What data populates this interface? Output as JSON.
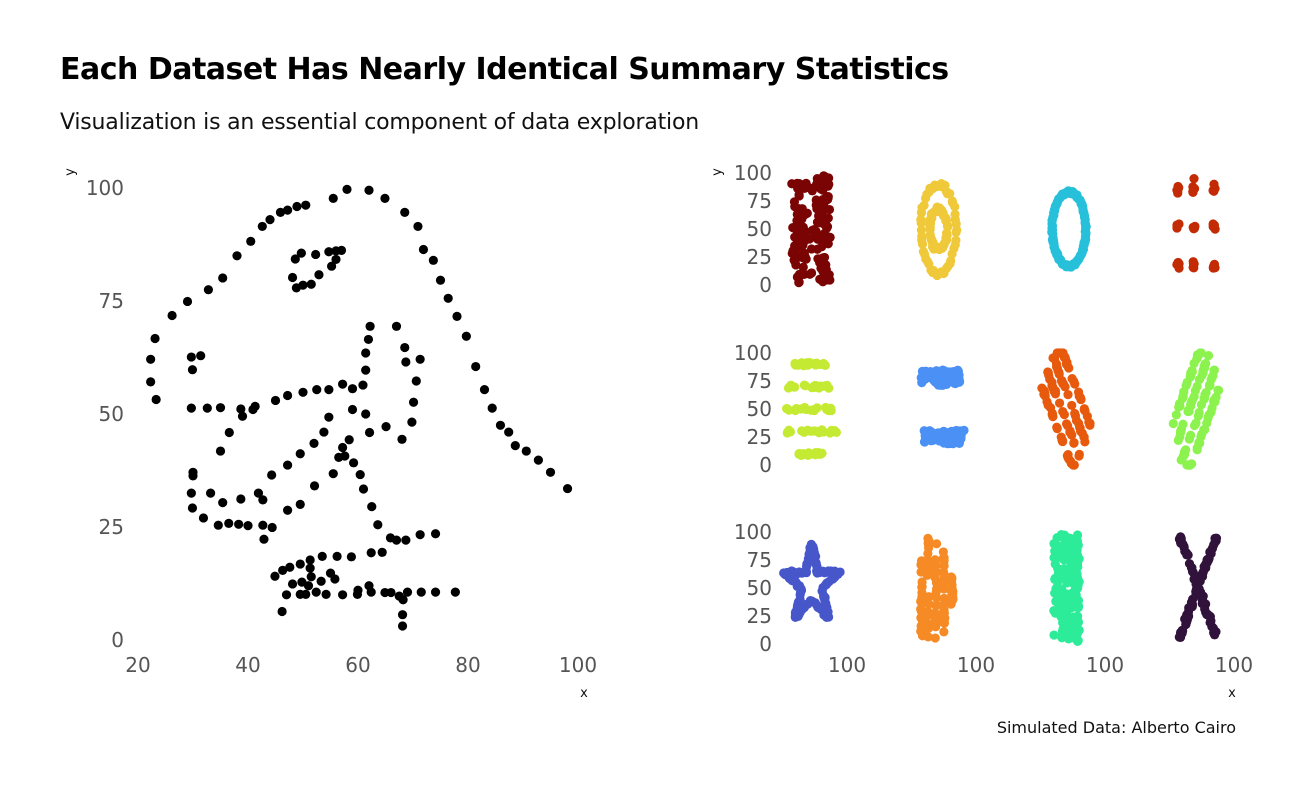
{
  "title": "Each Dataset Has Nearly Identical Summary Statistics",
  "subtitle": "Visualization is an essential component of data exploration",
  "caption": "Simulated Data: Alberto Cairo",
  "chart_data": [
    {
      "type": "scatter",
      "name": "dino",
      "xlabel": "x",
      "ylabel": "y",
      "xlim": [
        20,
        100
      ],
      "ylim": [
        0,
        100
      ],
      "xticks": [
        "20",
        "40",
        "60",
        "80",
        "100"
      ],
      "yticks": [
        "0",
        "25",
        "50",
        "75",
        "100"
      ],
      "color": "#000000",
      "points": [
        [
          22.3,
          57.1
        ],
        [
          22.3,
          62.1
        ],
        [
          23.1,
          66.7
        ],
        [
          23.3,
          53.2
        ],
        [
          26.2,
          71.8
        ],
        [
          29,
          74.9
        ],
        [
          32.8,
          77.5
        ],
        [
          35.4,
          80.1
        ],
        [
          38,
          85
        ],
        [
          40.5,
          88.2
        ],
        [
          42.6,
          91.5
        ],
        [
          44,
          93
        ],
        [
          45.9,
          94.6
        ],
        [
          47.2,
          95.1
        ],
        [
          48.9,
          95.9
        ],
        [
          50.5,
          96.2
        ],
        [
          55.5,
          97.7
        ],
        [
          58,
          99.7
        ],
        [
          62,
          99.5
        ],
        [
          64.9,
          97.7
        ],
        [
          68.5,
          94.6
        ],
        [
          70.9,
          91.5
        ],
        [
          71.9,
          86.4
        ],
        [
          73.7,
          84
        ],
        [
          75,
          79.6
        ],
        [
          76.4,
          75.6
        ],
        [
          78,
          71.6
        ],
        [
          79.7,
          67.2
        ],
        [
          81.4,
          60.5
        ],
        [
          83,
          55.4
        ],
        [
          84.4,
          51.3
        ],
        [
          85.9,
          47.5
        ],
        [
          87.4,
          46
        ],
        [
          88.6,
          43
        ],
        [
          90.6,
          41.8
        ],
        [
          92.8,
          39.8
        ],
        [
          95,
          37.1
        ],
        [
          98.1,
          33.5
        ],
        [
          48.1,
          80.2
        ],
        [
          48.8,
          77.9
        ],
        [
          50,
          78.5
        ],
        [
          51.5,
          78.7
        ],
        [
          52.9,
          80.8
        ],
        [
          55.2,
          82.7
        ],
        [
          56,
          84.2
        ],
        [
          56,
          86.1
        ],
        [
          57,
          86.2
        ],
        [
          54.7,
          85.9
        ],
        [
          52.3,
          85.3
        ],
        [
          49.7,
          85.6
        ],
        [
          48.6,
          84.3
        ],
        [
          62.2,
          69.4
        ],
        [
          61.9,
          66.5
        ],
        [
          61.4,
          63.5
        ],
        [
          61.4,
          59.7
        ],
        [
          60.9,
          56.4
        ],
        [
          59,
          55.6
        ],
        [
          57.2,
          56.6
        ],
        [
          54.7,
          55.4
        ],
        [
          52.5,
          55.4
        ],
        [
          50,
          54.8
        ],
        [
          47.2,
          54.1
        ],
        [
          45,
          53
        ],
        [
          41.3,
          51.7
        ],
        [
          39,
          49.5
        ],
        [
          36.6,
          45.9
        ],
        [
          35,
          41.8
        ],
        [
          30,
          37.1
        ],
        [
          30,
          36.3
        ],
        [
          29.7,
          32.5
        ],
        [
          29.9,
          29.2
        ],
        [
          31.9,
          27
        ],
        [
          34.6,
          25.4
        ],
        [
          36.5,
          25.8
        ],
        [
          38.3,
          25.6
        ],
        [
          40,
          25.3
        ],
        [
          42.7,
          25.4
        ],
        [
          42.7,
          31
        ],
        [
          44.3,
          36.5
        ],
        [
          47.2,
          38.7
        ],
        [
          49.5,
          41.2
        ],
        [
          52,
          43.5
        ],
        [
          53.8,
          46
        ],
        [
          54.7,
          49.3
        ],
        [
          59,
          51
        ],
        [
          61.4,
          50
        ],
        [
          29.7,
          62.6
        ],
        [
          31.4,
          62.9
        ],
        [
          29.9,
          59.8
        ],
        [
          29.7,
          51.3
        ],
        [
          32.6,
          51.3
        ],
        [
          35,
          51.4
        ],
        [
          38.7,
          51.1
        ],
        [
          40.9,
          51
        ],
        [
          67,
          69.4
        ],
        [
          68.5,
          64.7
        ],
        [
          68.7,
          61.5
        ],
        [
          70.6,
          57.3
        ],
        [
          71.3,
          62.1
        ],
        [
          70.1,
          52.6
        ],
        [
          69.8,
          48.2
        ],
        [
          68,
          44.4
        ],
        [
          65.1,
          47.2
        ],
        [
          62.1,
          45.9
        ],
        [
          58.4,
          44.3
        ],
        [
          56.5,
          40.4
        ],
        [
          55.5,
          36.8
        ],
        [
          52.1,
          34.1
        ],
        [
          49.5,
          30
        ],
        [
          47.2,
          28.7
        ],
        [
          44.4,
          24.9
        ],
        [
          42.9,
          22.3
        ],
        [
          33.2,
          32.5
        ],
        [
          35.4,
          30.4
        ],
        [
          38.7,
          31.2
        ],
        [
          41.9,
          32.5
        ],
        [
          57.2,
          42.6
        ],
        [
          57.6,
          40.7
        ],
        [
          59.2,
          39.2
        ],
        [
          60.4,
          36.6
        ],
        [
          61,
          33.4
        ],
        [
          62.5,
          29.5
        ],
        [
          63.6,
          25.5
        ],
        [
          65.9,
          22.6
        ],
        [
          68.7,
          22.1
        ],
        [
          71.3,
          23.3
        ],
        [
          74.1,
          23.5
        ],
        [
          64.4,
          19.4
        ],
        [
          67,
          22.1
        ],
        [
          62.4,
          19.3
        ],
        [
          58.8,
          18.4
        ],
        [
          56.2,
          18.5
        ],
        [
          53.5,
          18.5
        ],
        [
          51.3,
          17.7
        ],
        [
          49.5,
          16.8
        ],
        [
          47.6,
          16.1
        ],
        [
          44.9,
          14.1
        ],
        [
          46.2,
          6.3
        ],
        [
          47,
          10
        ],
        [
          48.1,
          12.4
        ],
        [
          50.5,
          10.1
        ],
        [
          52.4,
          10.6
        ],
        [
          54.2,
          10.1
        ],
        [
          57.2,
          10
        ],
        [
          59.9,
          10.1
        ],
        [
          62.4,
          10.6
        ],
        [
          64.9,
          10.5
        ],
        [
          67.5,
          9.7
        ],
        [
          68.2,
          8.9
        ],
        [
          68.1,
          5.6
        ],
        [
          68.1,
          3.1
        ],
        [
          69,
          10.6
        ],
        [
          71.5,
          10.6
        ],
        [
          74.1,
          10.6
        ],
        [
          77.7,
          10.6
        ],
        [
          49.8,
          12.8
        ],
        [
          51.5,
          14
        ],
        [
          55.8,
          13.5
        ],
        [
          53.3,
          13
        ],
        [
          51.3,
          15.9
        ],
        [
          49.5,
          10.1
        ],
        [
          46.3,
          15.4
        ],
        [
          51,
          12
        ],
        [
          55,
          14.8
        ],
        [
          60,
          11
        ],
        [
          62,
          12
        ],
        [
          66,
          10.5
        ]
      ]
    },
    {
      "type": "scatter",
      "name": "small-multiples",
      "xlabel": "x",
      "ylabel": "y",
      "xlim": [
        20,
        100
      ],
      "ylim": [
        0,
        100
      ],
      "yticks": [
        "0",
        "25",
        "50",
        "75",
        "100"
      ],
      "xticks": [
        "100"
      ],
      "panels": [
        {
          "name": "wide-lines",
          "color": "#7a0403",
          "shape": "wide_lines"
        },
        {
          "name": "bullseye",
          "color": "#f0c93a",
          "shape": "bullseye"
        },
        {
          "name": "circle",
          "color": "#27c0da",
          "shape": "circle"
        },
        {
          "name": "dots",
          "color": "#c32b04",
          "shape": "dots"
        },
        {
          "name": "h-lines",
          "color": "#c5ea33",
          "shape": "h_lines"
        },
        {
          "name": "high-lines",
          "color": "#4a90f5",
          "shape": "high_lines"
        },
        {
          "name": "slant-down",
          "color": "#e7590c",
          "shape": "slant_down"
        },
        {
          "name": "slant-up",
          "color": "#8cf24e",
          "shape": "slant_up"
        },
        {
          "name": "star",
          "color": "#4757ca",
          "shape": "star"
        },
        {
          "name": "v-lines",
          "color": "#f68a24",
          "shape": "v_lines"
        },
        {
          "name": "x-shape",
          "color": "#2cec9a",
          "shape": "x_shape"
        },
        {
          "name": "away",
          "color": "#30123b",
          "shape": "away"
        }
      ]
    }
  ]
}
